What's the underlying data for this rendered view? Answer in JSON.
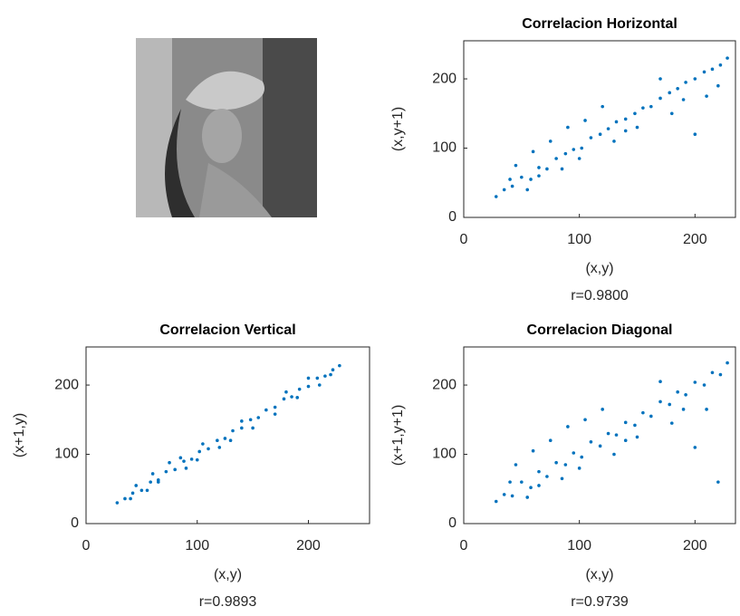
{
  "chart_data": [
    {
      "type": "scatter",
      "title": "Correlacion Horizontal",
      "xlabel": "(x,y)",
      "ylabel": "(x,y+1)",
      "annotation": "r=0.9800",
      "color": "#0072bd",
      "xlim": [
        0,
        235
      ],
      "ylim": [
        0,
        255
      ],
      "xticks": [
        0,
        100,
        200
      ],
      "yticks": [
        0,
        100,
        200
      ],
      "x": [
        28,
        35,
        42,
        50,
        58,
        65,
        72,
        80,
        88,
        95,
        102,
        110,
        118,
        125,
        132,
        140,
        148,
        155,
        162,
        170,
        178,
        185,
        192,
        200,
        208,
        215,
        222,
        228,
        45,
        60,
        75,
        90,
        105,
        120,
        150,
        180,
        210,
        55,
        85,
        130,
        170,
        200,
        40,
        65,
        100,
        140,
        190,
        220
      ],
      "y": [
        30,
        40,
        45,
        58,
        55,
        72,
        70,
        85,
        92,
        98,
        100,
        115,
        120,
        128,
        138,
        142,
        150,
        158,
        160,
        172,
        180,
        186,
        195,
        200,
        210,
        214,
        220,
        230,
        75,
        95,
        110,
        130,
        140,
        160,
        130,
        150,
        175,
        40,
        70,
        110,
        200,
        120,
        55,
        60,
        85,
        125,
        170,
        190
      ]
    },
    {
      "type": "scatter",
      "title": "Correlacion Vertical",
      "xlabel": "(x,y)",
      "ylabel": "(x+1,y)",
      "annotation": "r=0.9893",
      "color": "#0072bd",
      "xlim": [
        0,
        255
      ],
      "ylim": [
        0,
        255
      ],
      "xticks": [
        0,
        100,
        200
      ],
      "yticks": [
        0,
        100,
        200
      ],
      "x": [
        28,
        35,
        42,
        50,
        58,
        65,
        72,
        80,
        88,
        95,
        102,
        110,
        118,
        125,
        132,
        140,
        148,
        155,
        162,
        170,
        178,
        185,
        192,
        200,
        208,
        215,
        222,
        228,
        45,
        60,
        75,
        90,
        105,
        120,
        150,
        180,
        210,
        55,
        85,
        130,
        170,
        200,
        40,
        65,
        100,
        140,
        190,
        220
      ],
      "y": [
        30,
        36,
        44,
        48,
        60,
        63,
        75,
        78,
        90,
        93,
        104,
        108,
        120,
        123,
        134,
        138,
        150,
        153,
        164,
        168,
        180,
        183,
        194,
        198,
        210,
        213,
        222,
        228,
        55,
        72,
        88,
        80,
        115,
        110,
        138,
        190,
        200,
        48,
        95,
        120,
        158,
        210,
        36,
        60,
        92,
        148,
        182,
        215
      ]
    },
    {
      "type": "scatter",
      "title": "Correlacion Diagonal",
      "xlabel": "(x,y)",
      "ylabel": "(x+1,y+1)",
      "annotation": "r=0.9739",
      "color": "#0072bd",
      "xlim": [
        0,
        235
      ],
      "ylim": [
        0,
        255
      ],
      "xticks": [
        0,
        100,
        200
      ],
      "yticks": [
        0,
        100,
        200
      ],
      "x": [
        28,
        35,
        42,
        50,
        58,
        65,
        72,
        80,
        88,
        95,
        102,
        110,
        118,
        125,
        132,
        140,
        148,
        155,
        162,
        170,
        178,
        185,
        192,
        200,
        208,
        215,
        222,
        228,
        45,
        60,
        75,
        90,
        105,
        120,
        150,
        180,
        210,
        55,
        85,
        130,
        170,
        200,
        40,
        65,
        100,
        140,
        190,
        220
      ],
      "y": [
        32,
        42,
        40,
        60,
        52,
        75,
        68,
        88,
        85,
        102,
        96,
        118,
        112,
        130,
        128,
        146,
        142,
        160,
        155,
        176,
        172,
        190,
        186,
        204,
        200,
        218,
        215,
        232,
        85,
        105,
        120,
        140,
        150,
        165,
        125,
        145,
        165,
        38,
        65,
        100,
        205,
        110,
        60,
        55,
        80,
        120,
        165,
        60
      ]
    }
  ]
}
